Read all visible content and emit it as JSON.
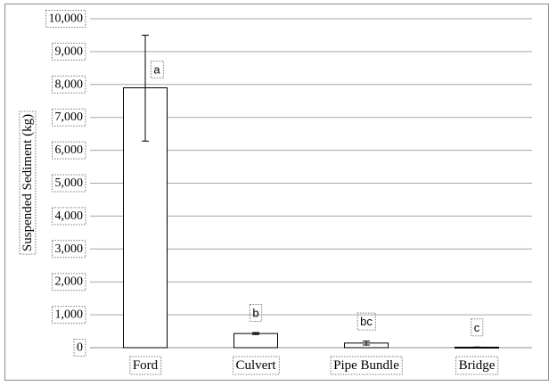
{
  "chart_data": {
    "type": "bar",
    "title": "",
    "xlabel": "",
    "ylabel": "Suspended Sediment (kg)",
    "categories": [
      "Ford",
      "Culvert",
      "Pipe Bundle",
      "Bridge"
    ],
    "values": [
      7900,
      430,
      140,
      15
    ],
    "error_low": [
      6280,
      400,
      80,
      10
    ],
    "error_high": [
      9500,
      460,
      200,
      20
    ],
    "annotations": [
      "a",
      "b",
      "bc",
      "c"
    ],
    "ylim": [
      0,
      10000
    ],
    "yticks": [
      0,
      1000,
      2000,
      3000,
      4000,
      5000,
      6000,
      7000,
      8000,
      9000,
      10000
    ],
    "ytick_labels": [
      "0",
      "1,000",
      "2,000",
      "3,000",
      "4,000",
      "5,000",
      "6,000",
      "7,000",
      "8,000",
      "9,000",
      "10,000"
    ],
    "grid": true,
    "legend": "none",
    "colors": {
      "bar_fill": "#ffffff",
      "bar_stroke": "#000000",
      "grid": "#a6a6a6",
      "frame": "#8c8c8c"
    }
  }
}
